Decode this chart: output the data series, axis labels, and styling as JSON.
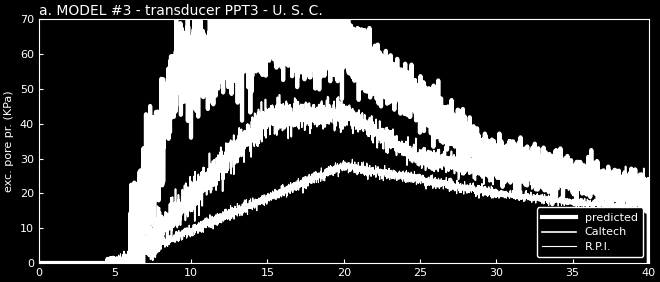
{
  "title": "a. MODEL #3 - transducer PPT3 - U. S. C.",
  "xlabel": "",
  "ylabel": "exc. pore pr. (KPa)",
  "xlim": [
    0,
    40
  ],
  "ylim": [
    0,
    70
  ],
  "yticks": [
    0,
    10,
    20,
    30,
    40,
    50,
    60,
    70
  ],
  "xticks": [
    0,
    5,
    10,
    15,
    20,
    25,
    30,
    35,
    40
  ],
  "background_color": "#000000",
  "text_color": "#ffffff",
  "legend_labels": [
    "predicted",
    "Caltech",
    "R.P.I."
  ],
  "predicted_linewidth": 3.0,
  "caltech_linewidth": 1.2,
  "rpi_linewidth": 0.8,
  "title_fontsize": 10,
  "axis_fontsize": 8,
  "tick_fontsize": 8
}
